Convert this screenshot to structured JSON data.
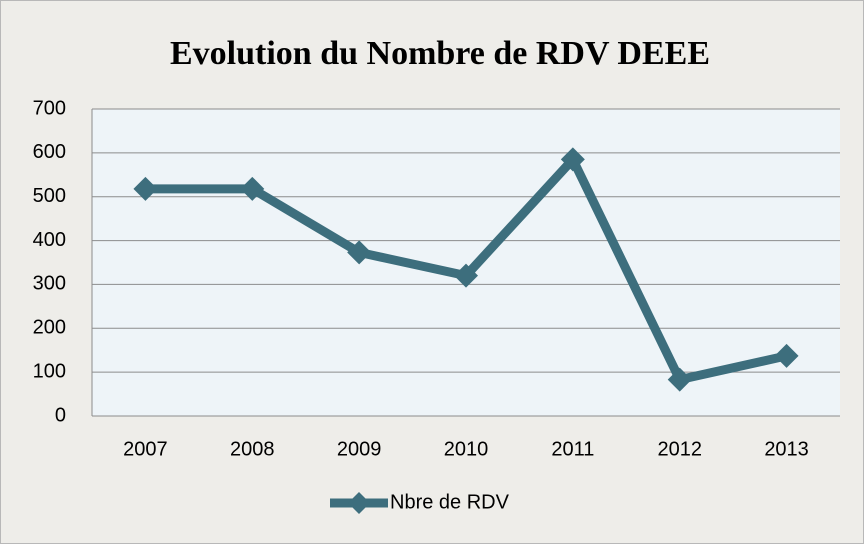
{
  "chart_data": {
    "type": "line",
    "title": "Evolution du Nombre de RDV DEEE",
    "categories": [
      "2007",
      "2008",
      "2009",
      "2010",
      "2011",
      "2012",
      "2013"
    ],
    "series": [
      {
        "name": "Nbre de RDV",
        "color": "#3d6e7d",
        "values": [
          518,
          518,
          373,
          320,
          585,
          83,
          137
        ]
      }
    ],
    "ylim": [
      0,
      700
    ],
    "yticks": [
      0,
      100,
      200,
      300,
      400,
      500,
      600,
      700
    ],
    "grid": true,
    "legend": "bottom"
  }
}
